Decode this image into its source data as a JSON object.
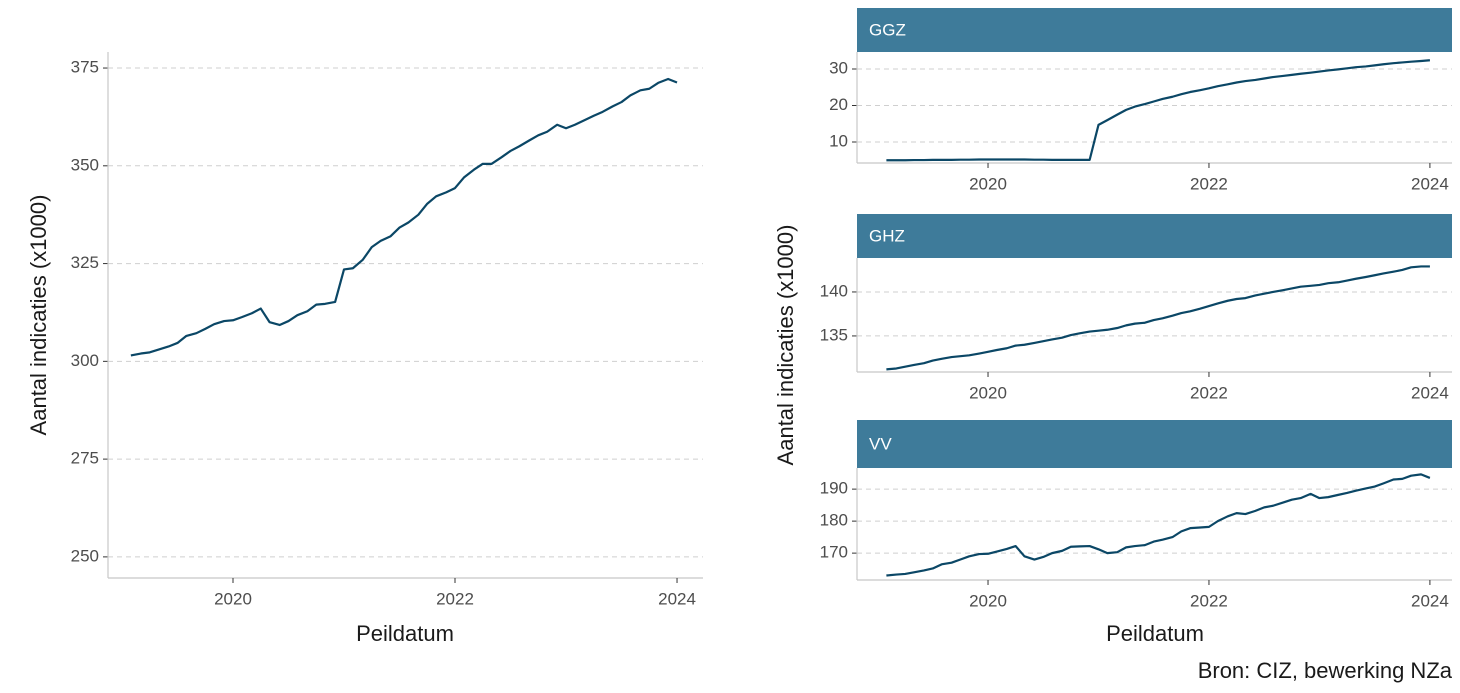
{
  "chart_data": [
    {
      "type": "line",
      "x_label": "Peildatum",
      "y_label": "Aantal indicaties (x1000)",
      "color": "#0b4766",
      "x": [
        2019.08,
        2019.17,
        2019.25,
        2019.33,
        2019.42,
        2019.5,
        2019.58,
        2019.67,
        2019.75,
        2019.83,
        2019.92,
        2020,
        2020.08,
        2020.17,
        2020.25,
        2020.33,
        2020.42,
        2020.5,
        2020.58,
        2020.67,
        2020.75,
        2020.83,
        2020.92,
        2021,
        2021.08,
        2021.17,
        2021.25,
        2021.33,
        2021.42,
        2021.5,
        2021.58,
        2021.67,
        2021.75,
        2021.83,
        2021.92,
        2022,
        2022.08,
        2022.17,
        2022.25,
        2022.33,
        2022.42,
        2022.5,
        2022.58,
        2022.67,
        2022.75,
        2022.83,
        2022.92,
        2023,
        2023.08,
        2023.17,
        2023.25,
        2023.33,
        2023.42,
        2023.5,
        2023.58,
        2023.67,
        2023.75,
        2023.83,
        2023.92,
        2024
      ],
      "values": [
        301.5,
        302,
        302.3,
        303,
        303.8,
        304.7,
        306.5,
        307.2,
        308.3,
        309.5,
        310.3,
        310.5,
        311.3,
        312.3,
        313.5,
        310,
        309.3,
        310.3,
        311.8,
        312.8,
        314.5,
        314.7,
        315.2,
        323.5,
        323.8,
        326,
        329.2,
        330.8,
        332,
        334.2,
        335.5,
        337.5,
        340.3,
        342.2,
        343.2,
        344.3,
        347,
        349,
        350.5,
        350.5,
        352.2,
        353.8,
        355,
        356.5,
        357.8,
        358.7,
        360.5,
        359.6,
        360.5,
        361.7,
        362.8,
        363.8,
        365.2,
        366.3,
        368,
        369.3,
        369.7,
        371.2,
        372.2,
        371.3
      ],
      "xlim": [
        2018.874,
        2024.234
      ],
      "xticks": [
        2020,
        2022,
        2024
      ],
      "ylim": [
        244.6,
        379.1
      ],
      "yticks": [
        250,
        275,
        300,
        325,
        350,
        375
      ],
      "grid": true
    },
    {
      "type": "line",
      "title": "GGZ",
      "color": "#0b4766",
      "x": [
        2019.08,
        2019.17,
        2019.25,
        2019.33,
        2019.42,
        2019.5,
        2019.58,
        2019.67,
        2019.75,
        2019.83,
        2019.92,
        2020,
        2020.08,
        2020.17,
        2020.25,
        2020.33,
        2020.42,
        2020.5,
        2020.58,
        2020.67,
        2020.75,
        2020.83,
        2020.92,
        2021,
        2021.08,
        2021.17,
        2021.25,
        2021.33,
        2021.42,
        2021.5,
        2021.58,
        2021.67,
        2021.75,
        2021.83,
        2021.92,
        2022,
        2022.08,
        2022.17,
        2022.25,
        2022.33,
        2022.42,
        2022.5,
        2022.58,
        2022.67,
        2022.75,
        2022.83,
        2022.92,
        2023,
        2023.08,
        2023.17,
        2023.25,
        2023.33,
        2023.42,
        2023.5,
        2023.58,
        2023.67,
        2023.75,
        2023.83,
        2023.92,
        2024
      ],
      "values": [
        5.0,
        5.0,
        5.0,
        5.05,
        5.05,
        5.1,
        5.1,
        5.1,
        5.15,
        5.15,
        5.2,
        5.2,
        5.2,
        5.2,
        5.2,
        5.2,
        5.15,
        5.15,
        5.1,
        5.1,
        5.1,
        5.1,
        5.1,
        14.7,
        16,
        17.5,
        18.8,
        19.7,
        20.4,
        21.1,
        21.8,
        22.4,
        23.1,
        23.7,
        24.2,
        24.7,
        25.3,
        25.8,
        26.3,
        26.7,
        27.0,
        27.4,
        27.8,
        28.1,
        28.4,
        28.7,
        29.0,
        29.3,
        29.6,
        29.9,
        30.2,
        30.5,
        30.7,
        31.0,
        31.3,
        31.6,
        31.8,
        32.0,
        32.2,
        32.4
      ],
      "xlim": [
        2018.814,
        2024.2
      ],
      "xticks": [
        2020,
        2022,
        2024
      ],
      "ylim": [
        4.25,
        34.66
      ],
      "yticks": [
        10,
        20,
        30
      ],
      "grid": true
    },
    {
      "type": "line",
      "title": "GHZ",
      "color": "#0b4766",
      "x": [
        2019.08,
        2019.17,
        2019.25,
        2019.33,
        2019.42,
        2019.5,
        2019.58,
        2019.67,
        2019.75,
        2019.83,
        2019.92,
        2020,
        2020.08,
        2020.17,
        2020.25,
        2020.33,
        2020.42,
        2020.5,
        2020.58,
        2020.67,
        2020.75,
        2020.83,
        2020.92,
        2021,
        2021.08,
        2021.17,
        2021.25,
        2021.33,
        2021.42,
        2021.5,
        2021.58,
        2021.67,
        2021.75,
        2021.83,
        2021.92,
        2022,
        2022.08,
        2022.17,
        2022.25,
        2022.33,
        2022.42,
        2022.5,
        2022.58,
        2022.67,
        2022.75,
        2022.83,
        2022.92,
        2023,
        2023.08,
        2023.17,
        2023.25,
        2023.33,
        2023.42,
        2023.5,
        2023.58,
        2023.67,
        2023.75,
        2023.83,
        2023.92,
        2024
      ],
      "values": [
        131.2,
        131.3,
        131.5,
        131.7,
        131.9,
        132.2,
        132.4,
        132.6,
        132.7,
        132.8,
        133.0,
        133.2,
        133.4,
        133.6,
        133.9,
        134.0,
        134.2,
        134.4,
        134.6,
        134.8,
        135.1,
        135.3,
        135.5,
        135.6,
        135.7,
        135.9,
        136.2,
        136.4,
        136.5,
        136.8,
        137.0,
        137.3,
        137.6,
        137.8,
        138.1,
        138.4,
        138.7,
        139.0,
        139.2,
        139.3,
        139.6,
        139.8,
        140.0,
        140.2,
        140.4,
        140.6,
        140.7,
        140.8,
        141.0,
        141.1,
        141.3,
        141.5,
        141.7,
        141.9,
        142.1,
        142.3,
        142.5,
        142.8,
        142.9,
        142.9
      ],
      "xlim": [
        2018.814,
        2024.2
      ],
      "xticks": [
        2020,
        2022,
        2024
      ],
      "ylim": [
        130.9,
        143.86
      ],
      "yticks": [
        135,
        140
      ],
      "grid": true
    },
    {
      "type": "line",
      "title": "VV",
      "color": "#0b4766",
      "x": [
        2019.08,
        2019.17,
        2019.25,
        2019.33,
        2019.42,
        2019.5,
        2019.58,
        2019.67,
        2019.75,
        2019.83,
        2019.92,
        2020,
        2020.08,
        2020.17,
        2020.25,
        2020.33,
        2020.42,
        2020.5,
        2020.58,
        2020.67,
        2020.75,
        2020.83,
        2020.92,
        2021,
        2021.08,
        2021.17,
        2021.25,
        2021.33,
        2021.42,
        2021.5,
        2021.58,
        2021.67,
        2021.75,
        2021.83,
        2021.92,
        2022,
        2022.08,
        2022.17,
        2022.25,
        2022.33,
        2022.42,
        2022.5,
        2022.58,
        2022.67,
        2022.75,
        2022.83,
        2022.92,
        2023,
        2023.08,
        2023.17,
        2023.25,
        2023.33,
        2023.42,
        2023.5,
        2023.58,
        2023.67,
        2023.75,
        2023.83,
        2023.92,
        2024
      ],
      "values": [
        163.0,
        163.3,
        163.5,
        164.0,
        164.6,
        165.2,
        166.5,
        167.0,
        168.0,
        169.0,
        169.7,
        169.8,
        170.5,
        171.3,
        172.2,
        169.0,
        168.0,
        168.8,
        170.0,
        170.7,
        172.0,
        172.1,
        172.2,
        171.2,
        170.0,
        170.3,
        171.8,
        172.2,
        172.5,
        173.6,
        174.2,
        175.0,
        176.8,
        177.8,
        178.0,
        178.2,
        180.0,
        181.5,
        182.5,
        182.2,
        183.2,
        184.3,
        184.8,
        185.8,
        186.7,
        187.2,
        188.5,
        187.2,
        187.5,
        188.2,
        188.8,
        189.5,
        190.2,
        190.8,
        191.8,
        193.0,
        193.2,
        194.2,
        194.6,
        193.5
      ],
      "xlim": [
        2018.814,
        2024.2
      ],
      "xticks": [
        2020,
        2022,
        2024
      ],
      "ylim": [
        161.6,
        196.6
      ],
      "yticks": [
        170,
        180,
        190
      ],
      "grid": true
    }
  ],
  "facet_y_label": "Aantal indicaties (x1000)",
  "facet_x_label": "Peildatum",
  "caption": "Bron: CIZ, bewerking NZa"
}
